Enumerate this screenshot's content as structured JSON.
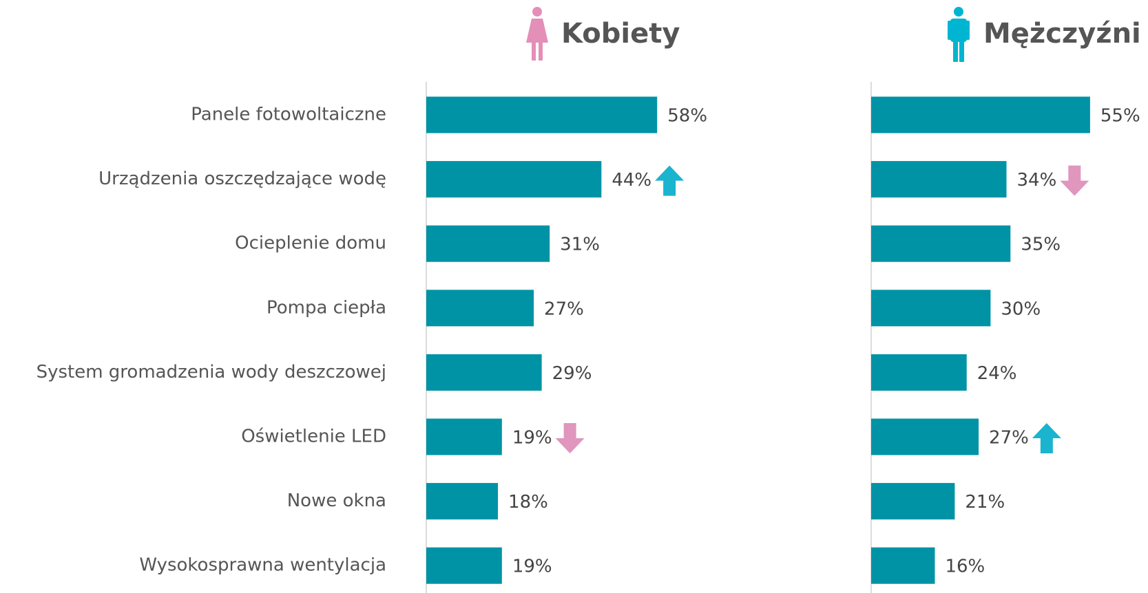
{
  "chart_data": {
    "type": "bar",
    "orientation": "horizontal",
    "categories": [
      "Panele fotowoltaiczne",
      "Urządzenia oszczędzające wodę",
      "Ocieplenie domu",
      "Pompa ciepła",
      "System gromadzenia wody deszczowej",
      "Oświetlenie LED",
      "Nowe okna",
      "Wysokosprawna wentylacja"
    ],
    "xlim": [
      0,
      100
    ],
    "bar_color": "#0093a6",
    "arrow_colors": {
      "up": "#1ab4cf",
      "down": "#e096bd"
    },
    "series": [
      {
        "name": "Kobiety",
        "color": "#e38fb8",
        "values": [
          58,
          44,
          31,
          27,
          29,
          19,
          18,
          19
        ],
        "value_labels": [
          "58%",
          "44%",
          "31%",
          "27%",
          "29%",
          "19%",
          "18%",
          "19%"
        ],
        "arrows": [
          null,
          "up",
          null,
          null,
          null,
          "down",
          null,
          null
        ]
      },
      {
        "name": "Mężczyźni",
        "color": "#00b5d1",
        "values": [
          55,
          34,
          35,
          30,
          24,
          27,
          21,
          16
        ],
        "value_labels": [
          "55%",
          "34%",
          "35%",
          "30%",
          "24%",
          "27%",
          "21%",
          "16%"
        ],
        "arrows": [
          null,
          "down",
          null,
          null,
          null,
          "up",
          null,
          null
        ]
      }
    ]
  }
}
